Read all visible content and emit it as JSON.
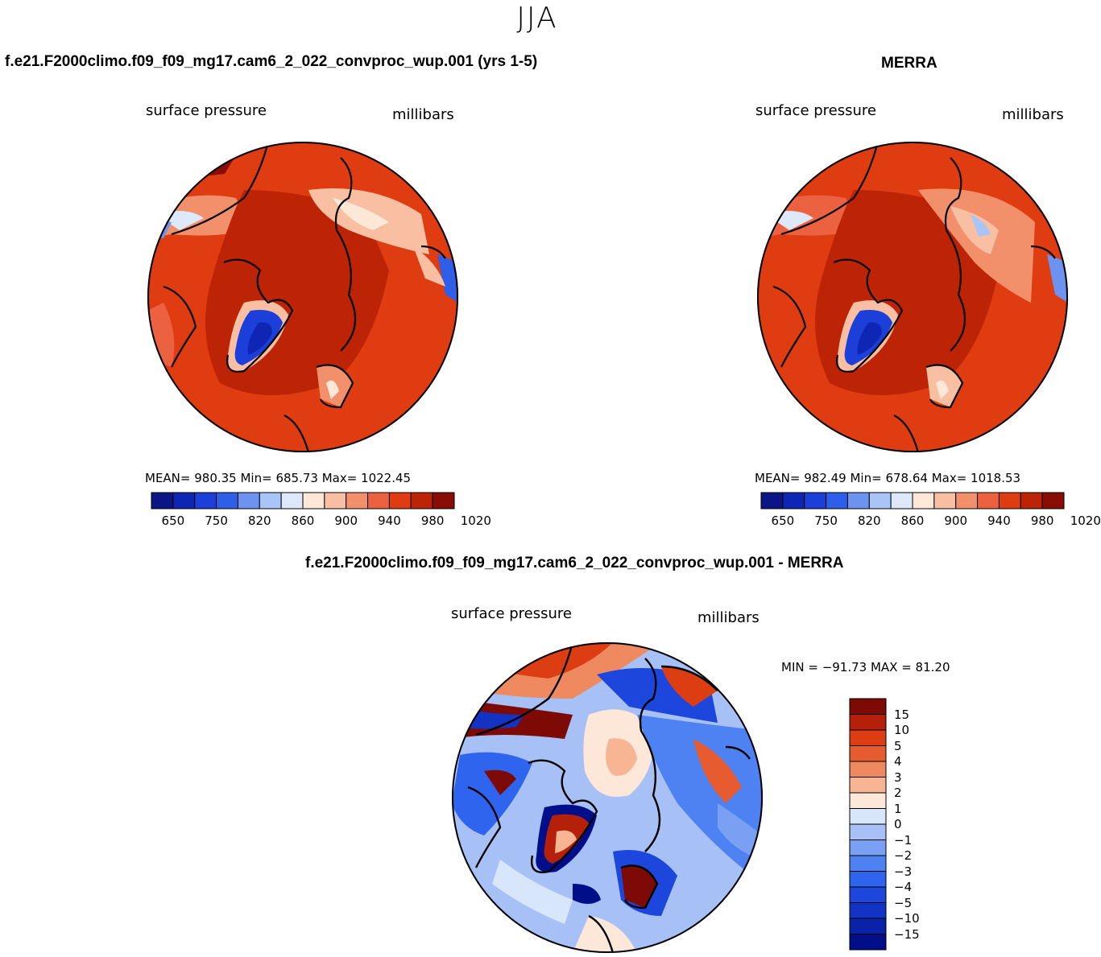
{
  "season": "JJA",
  "colors": {
    "bg_scale": [
      "#0b1585",
      "#0f26b4",
      "#1b3fd8",
      "#2f5fe8",
      "#6d93f1",
      "#a9c5f7",
      "#dde8fb",
      "#fde8d8",
      "#f8bfa3",
      "#f2906b",
      "#ec6240",
      "#e03c12",
      "#bd2305",
      "#8a0d05"
    ],
    "diff_scale": [
      "#000e8a",
      "#0a22a8",
      "#1233c4",
      "#1d47dc",
      "#2f64ee",
      "#4e82f3",
      "#7aa0f4",
      "#a7c1f7",
      "#d7e6fb",
      "#fde7d9",
      "#f7b594",
      "#ef8a60",
      "#e65c30",
      "#dc3d12",
      "#b5200a",
      "#7d0a04"
    ]
  },
  "panels": {
    "model": {
      "title": "f.e21.F2000climo.f09_f09_mg17.cam6_2_022_convproc_wup.001 (yrs 1-5)",
      "var_label": "surface pressure",
      "units": "millibars",
      "stats": "MEAN= 980.35   Min= 685.73   Max= 1022.45",
      "ticks": [
        "650",
        "750",
        "820",
        "860",
        "900",
        "940",
        "980",
        "1020"
      ]
    },
    "merra": {
      "title": "MERRA",
      "var_label": "surface pressure",
      "units": "millibars",
      "stats": "MEAN= 982.49   Min= 678.64   Max= 1018.53",
      "ticks": [
        "650",
        "750",
        "820",
        "860",
        "900",
        "940",
        "980",
        "1020"
      ]
    },
    "diff": {
      "title": "f.e21.F2000climo.f09_f09_mg17.cam6_2_022_convproc_wup.001 - MERRA",
      "var_label": "surface pressure",
      "units": "millibars",
      "stats": "MIN = −91.73 MAX =  81.20",
      "ticks": [
        "15",
        "10",
        "5",
        "4",
        "3",
        "2",
        "1",
        "0",
        "−1",
        "−2",
        "−3",
        "−4",
        "−5",
        "−10",
        "−15"
      ]
    }
  }
}
